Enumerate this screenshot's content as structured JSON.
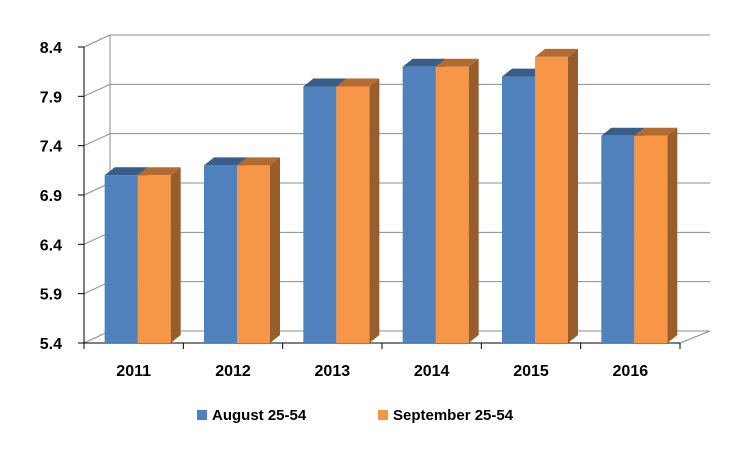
{
  "chart_data": {
    "type": "bar",
    "title": "",
    "xlabel": "",
    "ylabel": "",
    "categories": [
      "2011",
      "2012",
      "2013",
      "2014",
      "2015",
      "2016"
    ],
    "series": [
      {
        "name": "August 25-54",
        "color": "#4F81BD",
        "values": [
          7.1,
          7.2,
          8.0,
          8.2,
          8.1,
          7.5
        ]
      },
      {
        "name": "September 25-54",
        "color": "#F79646",
        "values": [
          7.1,
          7.2,
          8.0,
          8.2,
          8.3,
          7.5
        ]
      }
    ],
    "ylim": [
      5.4,
      8.4
    ],
    "yticks": [
      "5.4",
      "5.9",
      "6.4",
      "6.9",
      "7.4",
      "7.9",
      "8.4"
    ],
    "grid": true,
    "legend": "bottom-center",
    "style": "3d-clustered-column"
  }
}
